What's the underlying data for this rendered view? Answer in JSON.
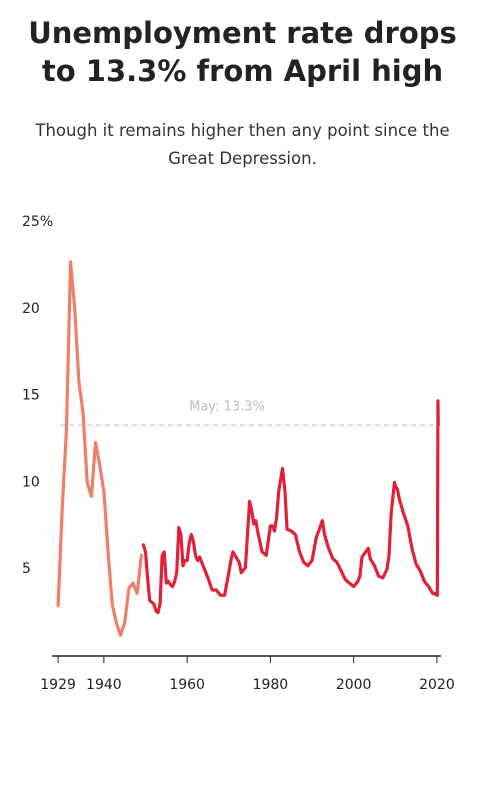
{
  "chart_data": {
    "type": "line",
    "title": "Unemployment rate drops to 13.3% from April high",
    "subtitle": "Though it remains higher then any point since the Great Depression.",
    "series": [
      {
        "color": "#ef8068",
        "x": [
          1929,
          1930,
          1931,
          1932,
          1933,
          1934,
          1935,
          1936,
          1937,
          1938,
          1939,
          1940,
          1941,
          1942,
          1943,
          1944,
          1945,
          1946,
          1947,
          1948,
          1949
        ],
        "values": [
          2.9,
          8.5,
          13,
          22.7,
          20,
          15.8,
          14,
          10,
          9.2,
          12.3,
          11,
          9.5,
          6,
          3,
          1.9,
          1.2,
          1.9,
          3.9,
          4.2,
          3.6,
          5.8
        ]
      },
      {
        "color": "#e3203a",
        "x": [
          1949.5,
          1950,
          1950.5,
          1951,
          1951.5,
          1952,
          1952.5,
          1953,
          1953.5,
          1954,
          1954.5,
          1955,
          1955.5,
          1956,
          1956.5,
          1957,
          1957.5,
          1958,
          1958.5,
          1959,
          1959.5,
          1960,
          1960.5,
          1961,
          1961.5,
          1962,
          1962.5,
          1963,
          1964,
          1965,
          1966,
          1967,
          1968,
          1969,
          1970,
          1970.5,
          1971,
          1972,
          1972.5,
          1973,
          1974,
          1974.5,
          1975,
          1975.5,
          1976,
          1976.5,
          1977,
          1978,
          1979,
          1980,
          1980.5,
          1981,
          1981.5,
          1982,
          1982.9,
          1983.5,
          1984,
          1985,
          1986,
          1987,
          1988,
          1989,
          1990,
          1991,
          1992.5,
          1993,
          1994,
          1995,
          1996,
          1997,
          1998,
          1999,
          2000,
          2001,
          2001.5,
          2002,
          2003.5,
          2004,
          2005,
          2006,
          2007,
          2008,
          2008.5,
          2009,
          2009.8,
          2010,
          2010.5,
          2011,
          2012,
          2013,
          2014,
          2015,
          2016,
          2017,
          2018,
          2019,
          2019.5,
          2020,
          2020.1,
          2020.25,
          2020.33
        ],
        "values": [
          6.4,
          6,
          4.5,
          3.2,
          3.1,
          3,
          2.6,
          2.5,
          3,
          5.8,
          6,
          4.2,
          4.3,
          4.1,
          4,
          4.3,
          4.8,
          7.4,
          7,
          5.2,
          5.5,
          5.5,
          6.5,
          7,
          6.6,
          5.8,
          5.5,
          5.7,
          5.1,
          4.5,
          3.8,
          3.8,
          3.5,
          3.5,
          4.8,
          5.5,
          6,
          5.6,
          5.4,
          4.8,
          5.1,
          7,
          8.9,
          8.4,
          7.6,
          7.8,
          7.1,
          6,
          5.8,
          7.5,
          7.5,
          7.2,
          8,
          9.5,
          10.8,
          9.5,
          7.3,
          7.2,
          7,
          6,
          5.4,
          5.2,
          5.5,
          6.8,
          7.8,
          7,
          6.2,
          5.6,
          5.4,
          4.9,
          4.4,
          4.2,
          4,
          4.3,
          4.6,
          5.7,
          6.2,
          5.6,
          5.2,
          4.6,
          4.5,
          5,
          5.8,
          8.2,
          10,
          9.8,
          9.6,
          9,
          8.2,
          7.5,
          6.2,
          5.3,
          4.9,
          4.3,
          4,
          3.6,
          3.6,
          3.5,
          3.5,
          14.7,
          13.3
        ]
      }
    ],
    "annotation": {
      "text": "May: 13.3%",
      "value": 13.3
    },
    "xlim": [
      1928.5,
      2020.5
    ],
    "xticks": [
      1929,
      1940,
      1960,
      1980,
      2000,
      2020
    ],
    "ylim": [
      0,
      25
    ],
    "yticks": [
      5,
      10,
      15,
      20,
      {
        "value": 25,
        "label": "25%"
      }
    ]
  }
}
